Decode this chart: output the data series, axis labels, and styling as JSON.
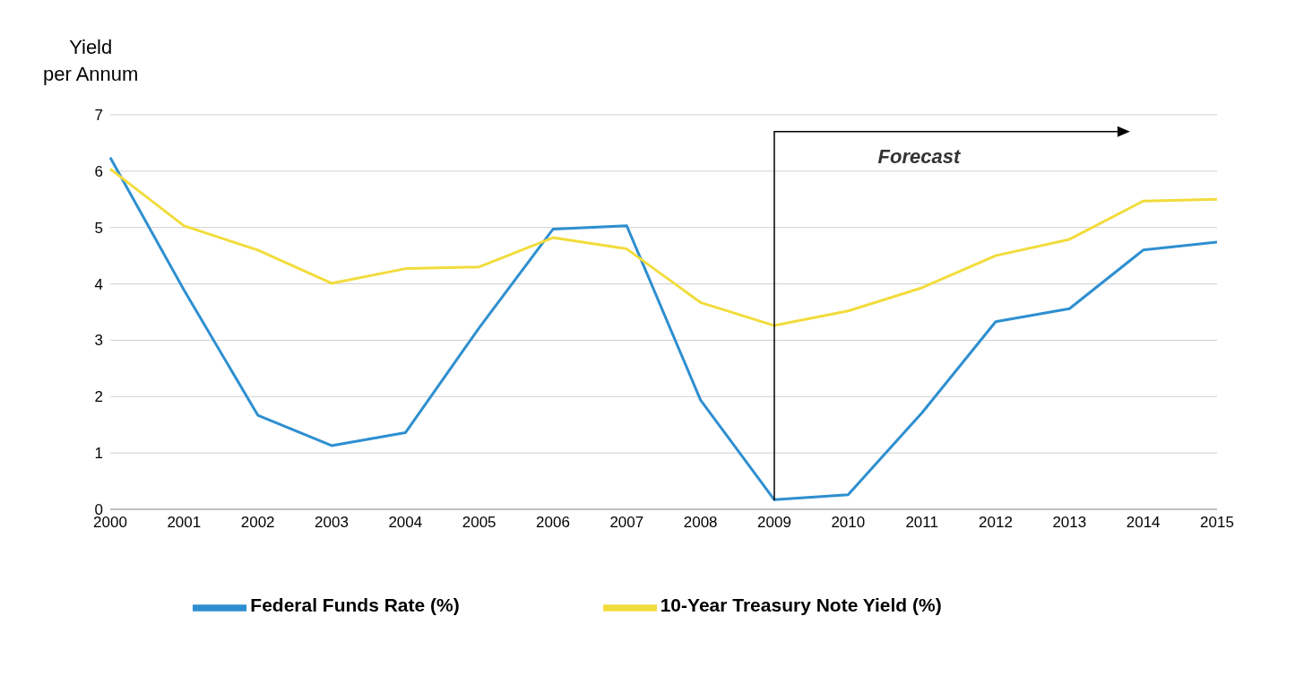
{
  "chart_data": {
    "type": "line",
    "ylabel": "Yield\nper Annum",
    "categories": [
      "2000",
      "2001",
      "2002",
      "2003",
      "2004",
      "2005",
      "2006",
      "2007",
      "2008",
      "2009",
      "2010",
      "2011",
      "2012",
      "2013",
      "2014",
      "2015"
    ],
    "series": [
      {
        "name": "Federal Funds Rate (%)",
        "color": "#2e8fd0",
        "values": [
          6.24,
          3.89,
          1.67,
          1.13,
          1.36,
          3.22,
          4.97,
          5.03,
          1.94,
          0.17,
          0.26,
          1.71,
          3.33,
          3.56,
          4.6,
          4.74
        ]
      },
      {
        "name": "10-Year Treasury Note Yield (%)",
        "color": "#f2dc3c",
        "values": [
          6.04,
          5.03,
          4.6,
          4.01,
          4.27,
          4.3,
          4.82,
          4.62,
          3.67,
          3.26,
          3.52,
          3.93,
          4.5,
          4.79,
          5.47,
          5.5
        ]
      }
    ],
    "ylim": [
      0,
      7
    ],
    "yticks": [
      0,
      1,
      2,
      3,
      4,
      5,
      6,
      7
    ],
    "grid": "y",
    "legend": "bottom",
    "marker": "none",
    "line_style": "solid",
    "ref_lines": [
      {
        "axis": "x",
        "value": "2009",
        "label": "Forecast"
      }
    ]
  }
}
